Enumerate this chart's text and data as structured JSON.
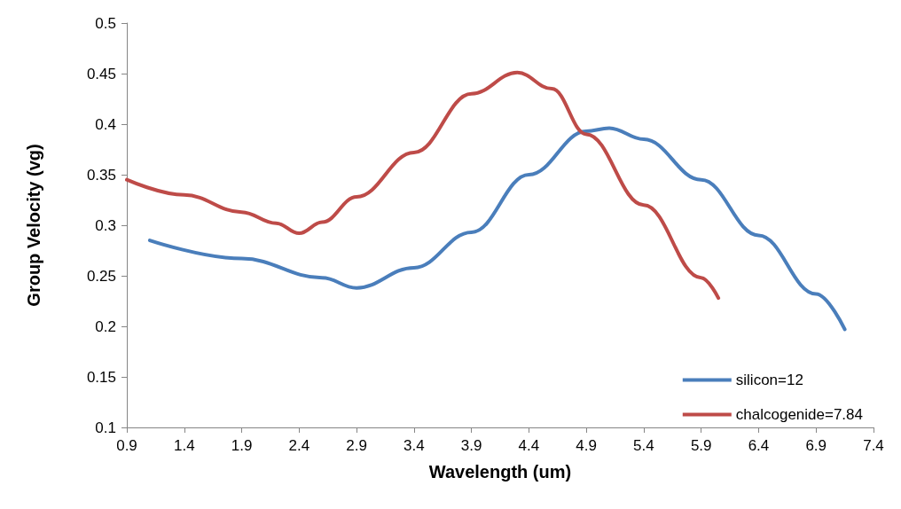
{
  "chart_data": {
    "type": "line",
    "xlabel": "Wavelength (um)",
    "ylabel": "Group Velocity (vg)",
    "xlim": [
      0.9,
      7.4
    ],
    "xticks": [
      0.9,
      1.4,
      1.9,
      2.4,
      2.9,
      3.4,
      3.9,
      4.4,
      4.9,
      5.4,
      5.9,
      6.4,
      6.9,
      7.4
    ],
    "ylim": [
      0.1,
      0.5
    ],
    "yticks": [
      0.1,
      0.15,
      0.2,
      0.25,
      0.3,
      0.35,
      0.4,
      0.45,
      0.5
    ],
    "grid": false,
    "legend": "bottom right",
    "marker": "none",
    "line_style": "solid",
    "series": [
      {
        "name": "silicon=12",
        "color": "#4a7ebb",
        "x": [
          1.1,
          1.9,
          2.6,
          2.9,
          3.4,
          3.9,
          4.4,
          4.9,
          5.1,
          5.4,
          5.9,
          6.4,
          6.9,
          7.15
        ],
        "values": [
          0.285,
          0.267,
          0.248,
          0.238,
          0.258,
          0.293,
          0.35,
          0.393,
          0.396,
          0.385,
          0.345,
          0.29,
          0.232,
          0.197
        ]
      },
      {
        "name": "chalcogenide=7.84",
        "color": "#be4b48",
        "x": [
          0.9,
          1.4,
          1.9,
          2.2,
          2.4,
          2.6,
          2.9,
          3.4,
          3.9,
          4.3,
          4.6,
          4.9,
          5.4,
          5.9,
          6.05
        ],
        "values": [
          0.345,
          0.33,
          0.313,
          0.302,
          0.292,
          0.303,
          0.328,
          0.372,
          0.43,
          0.451,
          0.435,
          0.39,
          0.32,
          0.248,
          0.228
        ]
      }
    ]
  }
}
